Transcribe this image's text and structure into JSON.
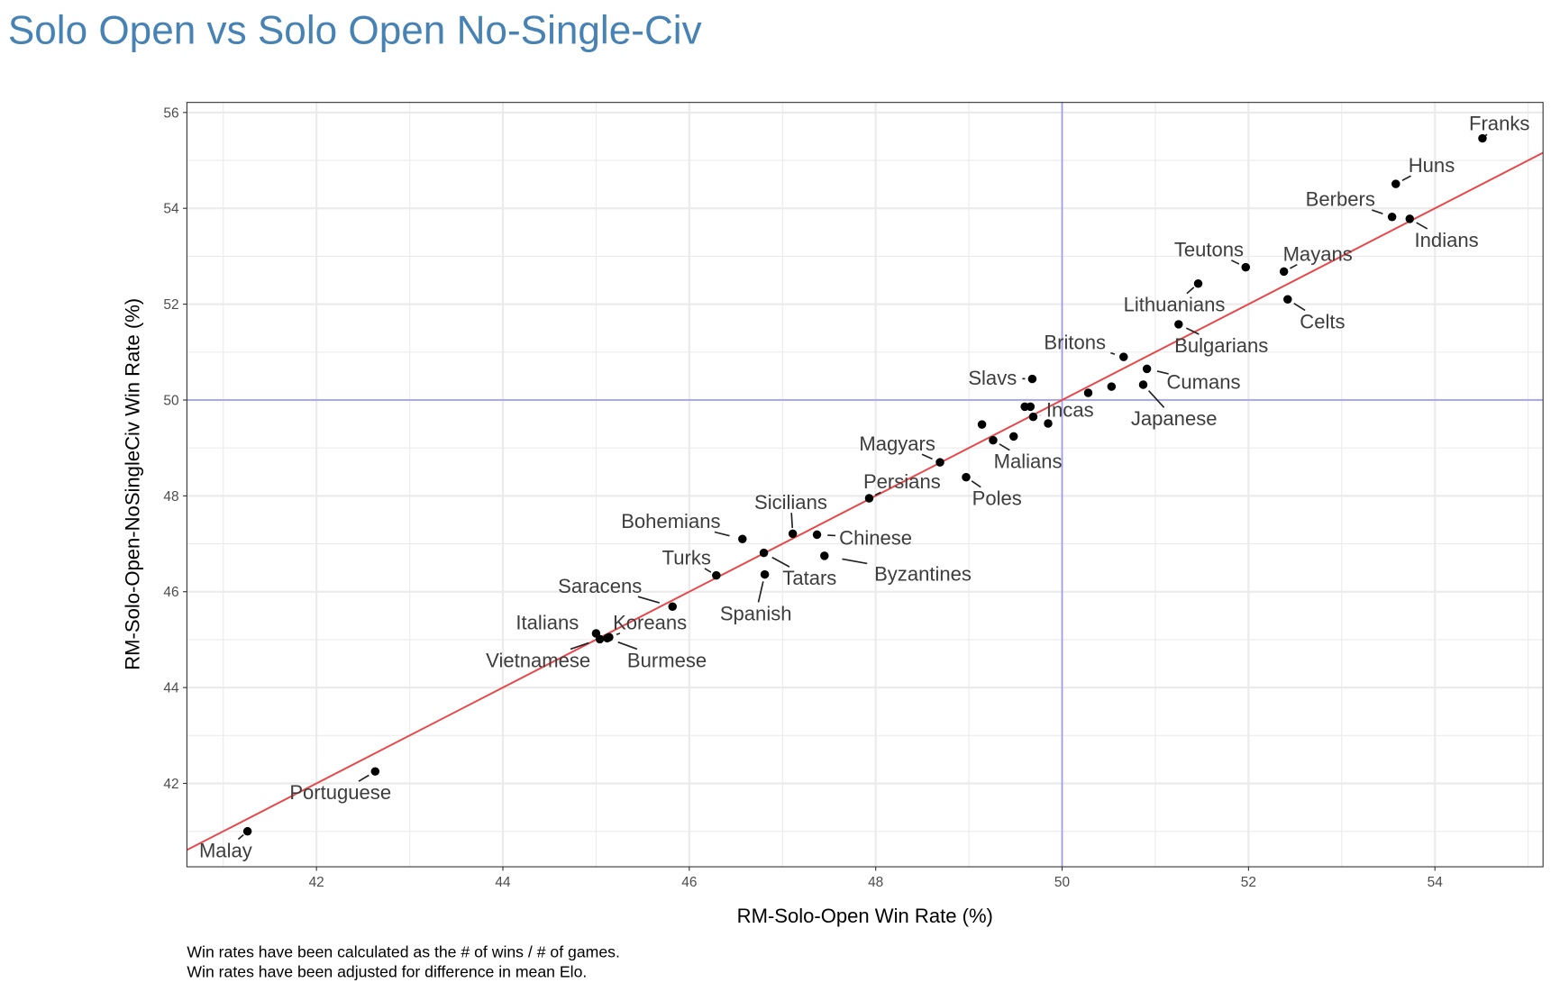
{
  "chart_data": {
    "type": "scatter",
    "title": "Solo Open vs Solo Open No-Single-Civ",
    "xlabel": "RM-Solo-Open Win Rate (%)",
    "ylabel": "RM-Solo-Open-NoSingleCiv Win Rate (%)",
    "xlim": [
      40.61,
      55.16
    ],
    "ylim": [
      40.26,
      56.21
    ],
    "xticks": [
      42,
      44,
      46,
      48,
      50,
      52,
      54
    ],
    "yticks": [
      42,
      44,
      46,
      48,
      50,
      52,
      54,
      56
    ],
    "grid": true,
    "reference_lines": {
      "x": 50,
      "y": 50,
      "color": "#9a9af0"
    },
    "fit_line": {
      "slope": 1,
      "intercept": 0,
      "color": "#e8484a"
    },
    "captions": [
      "Win rates have been calculated as the # of wins / # of games.",
      "Win rates have been adjusted for difference in mean Elo."
    ],
    "points": [
      {
        "label": "Franks",
        "x": 54.51,
        "y": 55.46
      },
      {
        "label": "Huns",
        "x": 53.58,
        "y": 54.51
      },
      {
        "label": "Berbers",
        "x": 53.54,
        "y": 53.82
      },
      {
        "label": "Indians",
        "x": 53.73,
        "y": 53.78
      },
      {
        "label": "Teutons",
        "x": 51.97,
        "y": 52.77
      },
      {
        "label": "Mayans",
        "x": 52.38,
        "y": 52.68
      },
      {
        "label": "Lithuanians",
        "x": 51.46,
        "y": 52.43
      },
      {
        "label": "Celts",
        "x": 52.42,
        "y": 52.1
      },
      {
        "label": "Bulgarians",
        "x": 51.25,
        "y": 51.58
      },
      {
        "label": "Britons",
        "x": 50.66,
        "y": 50.9
      },
      {
        "label": "Cumans",
        "x": 50.91,
        "y": 50.65
      },
      {
        "label": "Japanese",
        "x": 50.87,
        "y": 50.32
      },
      {
        "label": "Slavs",
        "x": 49.68,
        "y": 50.44
      },
      {
        "label": "Incas",
        "x": 49.69,
        "y": 49.65
      },
      {
        "label": "Malians",
        "x": 49.26,
        "y": 49.16
      },
      {
        "label": "Magyars",
        "x": 48.69,
        "y": 48.7
      },
      {
        "label": "Poles",
        "x": 48.97,
        "y": 48.39
      },
      {
        "label": "Persians",
        "x": 47.93,
        "y": 47.95
      },
      {
        "label": "Sicilians",
        "x": 47.11,
        "y": 47.21
      },
      {
        "label": "Chinese",
        "x": 47.37,
        "y": 47.19
      },
      {
        "label": "Bohemians",
        "x": 46.57,
        "y": 47.1
      },
      {
        "label": "Turks",
        "x": 46.29,
        "y": 46.34
      },
      {
        "label": "Tatars",
        "x": 46.8,
        "y": 46.81
      },
      {
        "label": "Byzantines",
        "x": 47.45,
        "y": 46.75
      },
      {
        "label": "Spanish",
        "x": 46.81,
        "y": 46.36
      },
      {
        "label": "Saracens",
        "x": 45.82,
        "y": 45.69
      },
      {
        "label": "Italians",
        "x": 45.0,
        "y": 45.13
      },
      {
        "label": "Koreans",
        "x": 45.14,
        "y": 45.05
      },
      {
        "label": "Vietnamese",
        "x": 45.04,
        "y": 45.01
      },
      {
        "label": "Burmese",
        "x": 45.12,
        "y": 45.03
      },
      {
        "label": "Portuguese",
        "x": 42.63,
        "y": 42.25
      },
      {
        "label": "Malay",
        "x": 41.26,
        "y": 41.0
      },
      {
        "label": "",
        "x": 50.53,
        "y": 50.28
      },
      {
        "label": "",
        "x": 50.28,
        "y": 50.15
      },
      {
        "label": "",
        "x": 49.6,
        "y": 49.86
      },
      {
        "label": "",
        "x": 49.66,
        "y": 49.86
      },
      {
        "label": "",
        "x": 49.85,
        "y": 49.51
      },
      {
        "label": "",
        "x": 49.14,
        "y": 49.49
      },
      {
        "label": "",
        "x": 49.48,
        "y": 49.24
      }
    ]
  }
}
